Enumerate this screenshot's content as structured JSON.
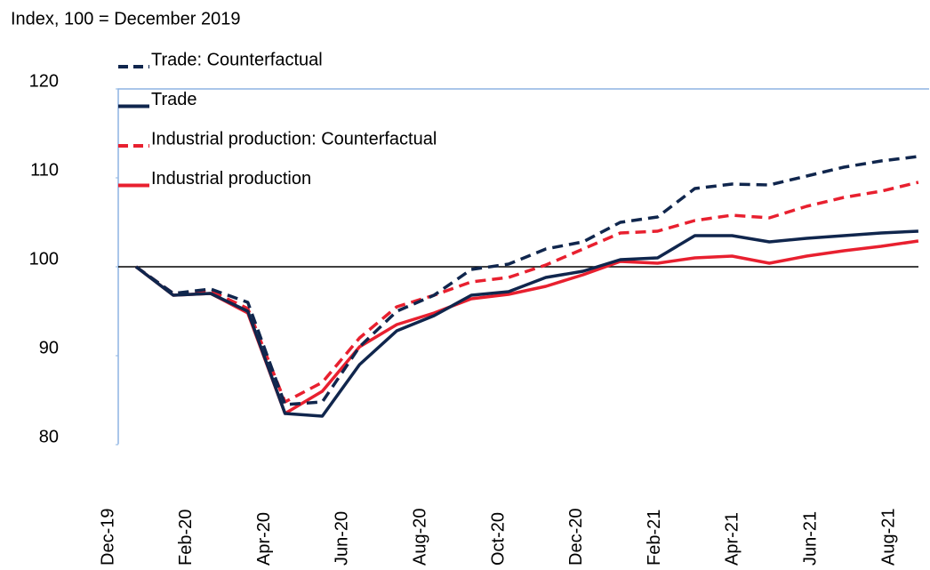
{
  "chart_data": {
    "type": "line",
    "ylabel": "Index, 100 = December 2019",
    "categories": [
      "Dec-19",
      null,
      "Feb-20",
      null,
      "Apr-20",
      null,
      "Jun-20",
      null,
      "Aug-20",
      null,
      "Oct-20",
      null,
      "Dec-20",
      null,
      "Feb-21",
      null,
      "Apr-21",
      null,
      "Jun-21",
      null,
      "Aug-21",
      null
    ],
    "ylim": [
      80,
      120
    ],
    "yticks": [
      80,
      90,
      100,
      110,
      120
    ],
    "reference_line": 100,
    "series": [
      {
        "name": "Trade: Counterfactual",
        "color": "#10264d",
        "dash": true,
        "values": [
          100,
          97,
          97.5,
          96,
          84.5,
          84.8,
          91,
          95,
          96.8,
          99.7,
          100.3,
          102,
          102.8,
          105,
          105.6,
          108.8,
          109.3,
          109.2,
          110.2,
          111.2,
          111.9,
          112.4
        ]
      },
      {
        "name": "Trade",
        "color": "#10264d",
        "dash": false,
        "values": [
          100,
          96.8,
          97,
          95,
          83.5,
          83.2,
          89,
          92.8,
          94.5,
          96.8,
          97.2,
          98.8,
          99.5,
          100.8,
          101,
          103.5,
          103.5,
          102.8,
          103.2,
          103.5,
          103.8,
          104
        ]
      },
      {
        "name": "Industrial production: Counterfactual",
        "color": "#e8202f",
        "dash": true,
        "values": [
          100,
          97,
          97.3,
          95.3,
          84.8,
          87,
          92,
          95.5,
          96.8,
          98.3,
          98.8,
          100.2,
          102,
          103.8,
          104,
          105.2,
          105.8,
          105.5,
          106.8,
          107.8,
          108.5,
          109.5
        ]
      },
      {
        "name": "Industrial production",
        "color": "#e8202f",
        "dash": false,
        "values": [
          100,
          96.8,
          97,
          94.8,
          83.5,
          86,
          91,
          93.5,
          94.8,
          96.4,
          96.9,
          97.8,
          99.1,
          100.6,
          100.4,
          101,
          101.2,
          100.4,
          101.2,
          101.8,
          102.3,
          102.9
        ]
      }
    ]
  }
}
